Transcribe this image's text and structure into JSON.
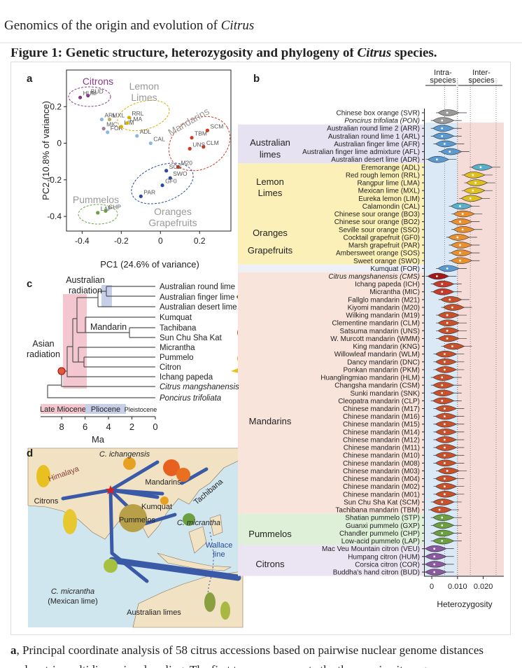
{
  "header": {
    "title": "Genomics of the origin and evolution of ",
    "title_italic": "Citrus"
  },
  "figure": {
    "heading": "Figure 1: Genetic structure, heterozygosity and phylogeny of ",
    "heading_italic": "Citrus",
    "heading_end": " species.",
    "panel_a": {
      "label": "a",
      "x_label": "PC1 (24.6% of variance)",
      "y_label": "PC2 (10.8% of variance)",
      "xlim": [
        -0.48,
        0.36
      ],
      "ylim": [
        -0.48,
        0.4
      ],
      "xticks": [
        -0.4,
        -0.2,
        0,
        0.2
      ],
      "yticks": [
        0.2,
        0,
        -0.2,
        -0.4
      ],
      "groups": [
        "Citrons",
        "Lemon",
        "Limes",
        "Mandarins",
        "Pummelos",
        "Oranges",
        "Grapefruits"
      ],
      "points": [
        {
          "label": "HUM",
          "x": -0.41,
          "y": 0.25,
          "color": "#8a3a8a"
        },
        {
          "label": "BUD",
          "x": -0.37,
          "y": 0.26,
          "color": "#8a3a8a"
        },
        {
          "label": "ARL",
          "x": -0.3,
          "y": 0.13,
          "color": "#8ab8e0"
        },
        {
          "label": "MXL",
          "x": -0.26,
          "y": 0.13,
          "color": "#b8b060"
        },
        {
          "label": "MIC",
          "x": -0.29,
          "y": 0.08,
          "color": "#a07aa0"
        },
        {
          "label": "FOR",
          "x": -0.27,
          "y": 0.06,
          "color": "#8ab8e0"
        },
        {
          "label": "LIM",
          "x": -0.2,
          "y": 0.09,
          "color": "#d4b000"
        },
        {
          "label": "LMA",
          "x": -0.17,
          "y": 0.11,
          "color": "#d4b000"
        },
        {
          "label": "RRL",
          "x": -0.16,
          "y": 0.14,
          "color": "#d4b000"
        },
        {
          "label": "ADL",
          "x": -0.12,
          "y": 0.04,
          "color": "#8ab8e0"
        },
        {
          "label": "CAL",
          "x": -0.05,
          "y": 0.0,
          "color": "#8ab8e0"
        },
        {
          "label": "SCM",
          "x": 0.24,
          "y": 0.07,
          "color": "#d23a1e"
        },
        {
          "label": "TBM",
          "x": 0.16,
          "y": 0.03,
          "color": "#d23a1e"
        },
        {
          "label": "CLM",
          "x": 0.22,
          "y": -0.02,
          "color": "#d23a1e"
        },
        {
          "label": "UNS",
          "x": 0.15,
          "y": -0.03,
          "color": "#d23a1e"
        },
        {
          "label": "M20",
          "x": 0.09,
          "y": -0.13,
          "color": "#d23a1e"
        },
        {
          "label": "SOS",
          "x": 0.03,
          "y": -0.15,
          "color": "#2a4a9a"
        },
        {
          "label": "SWO",
          "x": 0.05,
          "y": -0.19,
          "color": "#2a4a9a"
        },
        {
          "label": "GF0",
          "x": 0.01,
          "y": -0.23,
          "color": "#2a4a9a"
        },
        {
          "label": "PAR",
          "x": -0.1,
          "y": -0.29,
          "color": "#2a4a9a"
        },
        {
          "label": "LAP",
          "x": -0.32,
          "y": -0.38,
          "color": "#6aa040"
        },
        {
          "label": "CHP",
          "x": -0.28,
          "y": -0.37,
          "color": "#6aa040"
        }
      ]
    },
    "panel_b": {
      "label": "b",
      "column_labels": [
        "Intra-",
        "species",
        "Inter-",
        "species"
      ],
      "x_label": "Heterozygosity",
      "xlim": [
        -0.003,
        0.028
      ],
      "xticks": [
        0,
        {
          "value": 0.01,
          "label": "0.010"
        },
        {
          "value": 0.02,
          "label": "0.020"
        }
      ],
      "groups": [
        "Australian",
        "limes",
        "Lemon",
        "Limes",
        "Oranges",
        "Grapefruits",
        "Mandarins",
        "Pummelos",
        "Citrons"
      ],
      "accessions": [
        {
          "label": "Chinese box orange (SVR)",
          "value": 0.006,
          "color": "#9a9a9a"
        },
        {
          "label": "Poncirus trifoliata (PON)",
          "value": 0.004,
          "color": "#9a9a9a",
          "italic": true
        },
        {
          "label": "Australian round lime 2 (ARR)",
          "value": 0.004,
          "color": "#5a9ad0"
        },
        {
          "label": "Australian round lime 1 (ARL)",
          "value": 0.004,
          "color": "#5a9ad0"
        },
        {
          "label": "Australian finger lime (AFR)",
          "value": 0.005,
          "color": "#5a9ad0"
        },
        {
          "label": "Australian finger lime admixture (AFL)",
          "value": 0.007,
          "color": "#5a9ad0"
        },
        {
          "label": "Australian desert lime (ADR)",
          "value": 0.002,
          "color": "#5a9ad0"
        },
        {
          "label": "Eremorange (ADL)",
          "value": 0.019,
          "color": "#5ab0c8"
        },
        {
          "label": "Red rough lemon (RRL)",
          "value": 0.016,
          "color": "#e0c020"
        },
        {
          "label": "Rangpur lime (LMA)",
          "value": 0.017,
          "color": "#e0c020"
        },
        {
          "label": "Mexican lime (MXL)",
          "value": 0.016,
          "color": "#e0c020"
        },
        {
          "label": "Eureka lemon (LIM)",
          "value": 0.015,
          "color": "#e0c020"
        },
        {
          "label": "Calamondin (CAL)",
          "value": 0.011,
          "color": "#5ab0c8"
        },
        {
          "label": "Chinese sour orange (BO3)",
          "value": 0.012,
          "color": "#e89030"
        },
        {
          "label": "Chinese sour orange (BO2)",
          "value": 0.011,
          "color": "#e89030"
        },
        {
          "label": "Seville sour orange (SSO)",
          "value": 0.012,
          "color": "#e89030"
        },
        {
          "label": "Cocktail grapefruit (GF0)",
          "value": 0.01,
          "color": "#e89030"
        },
        {
          "label": "Marsh grapefruit (PAR)",
          "value": 0.011,
          "color": "#e89030"
        },
        {
          "label": "Ambersweet orange (SOS)",
          "value": 0.011,
          "color": "#e89030"
        },
        {
          "label": "Sweet orange (SWO)",
          "value": 0.011,
          "color": "#e89030"
        },
        {
          "label": "Kumquat (FOR)",
          "value": 0.006,
          "color": "#5a9ad0"
        },
        {
          "label": "Citrus mangshanensis (CMS)",
          "value": 0.002,
          "color": "#a01818",
          "italic": true
        },
        {
          "label": "Ichang papeda (ICH)",
          "value": 0.004,
          "color": "#c83a2a"
        },
        {
          "label": "Micrantha (MIC)",
          "value": 0.004,
          "color": "#c83a2a"
        },
        {
          "label": "Fallglo mandarin (M21)",
          "value": 0.007,
          "color": "#c8502a"
        },
        {
          "label": "Kiyomi mandarin (M20)",
          "value": 0.008,
          "color": "#c8502a"
        },
        {
          "label": "Wilking mandarin (M19)",
          "value": 0.006,
          "color": "#c8502a"
        },
        {
          "label": "Clementine mandarin (CLM)",
          "value": 0.006,
          "color": "#c8502a"
        },
        {
          "label": "Satsuma mandarin (UNS)",
          "value": 0.006,
          "color": "#c8502a"
        },
        {
          "label": "W. Murcott mandarin (WMM)",
          "value": 0.006,
          "color": "#c8502a"
        },
        {
          "label": "King mandarin (KNG)",
          "value": 0.008,
          "color": "#c8502a"
        },
        {
          "label": "Willowleaf mandarin (WLM)",
          "value": 0.005,
          "color": "#c8502a"
        },
        {
          "label": "Dancy mandarin (DNC)",
          "value": 0.005,
          "color": "#c8502a"
        },
        {
          "label": "Ponkan mandarin (PKM)",
          "value": 0.005,
          "color": "#c8502a"
        },
        {
          "label": "Huanglingmiao mandarin (HLM)",
          "value": 0.004,
          "color": "#c8502a"
        },
        {
          "label": "Changsha mandarin (CSM)",
          "value": 0.004,
          "color": "#c8502a"
        },
        {
          "label": "Sunki mandarin (SNK)",
          "value": 0.004,
          "color": "#c8502a"
        },
        {
          "label": "Cleopatra mandarin (CLP)",
          "value": 0.004,
          "color": "#c8502a"
        },
        {
          "label": "Chinese mandarin (M17)",
          "value": 0.005,
          "color": "#c8502a"
        },
        {
          "label": "Chinese mandarin (M16)",
          "value": 0.005,
          "color": "#c8502a"
        },
        {
          "label": "Chinese mandarin (M15)",
          "value": 0.005,
          "color": "#c8502a"
        },
        {
          "label": "Chinese mandarin (M14)",
          "value": 0.005,
          "color": "#c8502a"
        },
        {
          "label": "Chinese mandarin (M12)",
          "value": 0.005,
          "color": "#c8502a"
        },
        {
          "label": "Chinese mandarin (M11)",
          "value": 0.005,
          "color": "#c8502a"
        },
        {
          "label": "Chinese mandarin (M10)",
          "value": 0.005,
          "color": "#c8502a"
        },
        {
          "label": "Chinese mandarin (M08)",
          "value": 0.005,
          "color": "#c8502a"
        },
        {
          "label": "Chinese mandarin (M03)",
          "value": 0.006,
          "color": "#c8502a"
        },
        {
          "label": "Chinese mandarin (M04)",
          "value": 0.005,
          "color": "#c8502a"
        },
        {
          "label": "Chinese mandarin (M02)",
          "value": 0.005,
          "color": "#c8502a"
        },
        {
          "label": "Chinese mandarin (M01)",
          "value": 0.005,
          "color": "#c8502a"
        },
        {
          "label": "Sun Chu Sha Kat (SCM)",
          "value": 0.004,
          "color": "#c8502a"
        },
        {
          "label": "Tachibana mandarin (TBM)",
          "value": 0.003,
          "color": "#c8502a"
        },
        {
          "label": "Shatian pummelo (STP)",
          "value": 0.004,
          "color": "#6aa040"
        },
        {
          "label": "Guanxi pummelo (GXP)",
          "value": 0.004,
          "color": "#6aa040"
        },
        {
          "label": "Chandler pummelo (CHP)",
          "value": 0.004,
          "color": "#6aa040"
        },
        {
          "label": "Low-acid pummelo (LAP)",
          "value": 0.004,
          "color": "#6aa040"
        },
        {
          "label": "Mac Veu Mountain citron (VEU)",
          "value": 0.001,
          "color": "#8a5aa0"
        },
        {
          "label": "Humpang citron (HUM)",
          "value": 0.001,
          "color": "#8a5aa0"
        },
        {
          "label": "Corsica citron (COR)",
          "value": 0.001,
          "color": "#8a5aa0"
        },
        {
          "label": "Buddha's hand citron (BUD)",
          "value": 0.001,
          "color": "#8a5aa0"
        }
      ]
    },
    "panel_c": {
      "label": "c",
      "taxa": [
        {
          "text": "Australian round lime"
        },
        {
          "text": "Australian finger lime"
        },
        {
          "text": "Australian desert lime"
        },
        {
          "text": "Kumquat"
        },
        {
          "text": "Tachibana"
        },
        {
          "text": "Sun Chu Sha Kat"
        },
        {
          "text": "Micrantha"
        },
        {
          "text": "Pummelo"
        },
        {
          "text": "Citron"
        },
        {
          "text": "Ichang papeda"
        },
        {
          "text": "Citrus mangshanensis",
          "italic": true
        },
        {
          "text": "Poncirus trifoliata",
          "italic": true
        }
      ],
      "clade_labels": [
        "Australian",
        "radiation",
        "Mandarin",
        "Asian",
        "radiation"
      ],
      "epochs": [
        "Late Miocene",
        "Pliocene",
        "Pleistocene"
      ],
      "xlim": [
        9.8,
        0
      ],
      "xticks": [
        8,
        6,
        4,
        2,
        0
      ],
      "x_label": "Ma"
    },
    "panel_d": {
      "label": "d",
      "places": [
        {
          "text": "C. ichangensis",
          "italic": true
        },
        {
          "text": "Himalaya"
        },
        {
          "text": "Mandarins"
        },
        {
          "text": "Tachibana"
        },
        {
          "text": "Citrons"
        },
        {
          "text": "Kumquat"
        },
        {
          "text": "Pummelos"
        },
        {
          "text": "C. micrantha",
          "italic": true
        },
        {
          "text": "Wallace"
        },
        {
          "text": "line"
        },
        {
          "text": "C. micrantha",
          "italic": true
        },
        {
          "text": "(Mexican lime)"
        },
        {
          "text": "Australian limes"
        }
      ]
    }
  },
  "caption": {
    "lead": "a",
    "lines": [
      ", Principal coordinate analysis of 58 citrus accessions based on pairwise nuclear genome distances",
      "and metric multidimensional scaling. The first two axes separate the three main citrus groups"
    ]
  }
}
